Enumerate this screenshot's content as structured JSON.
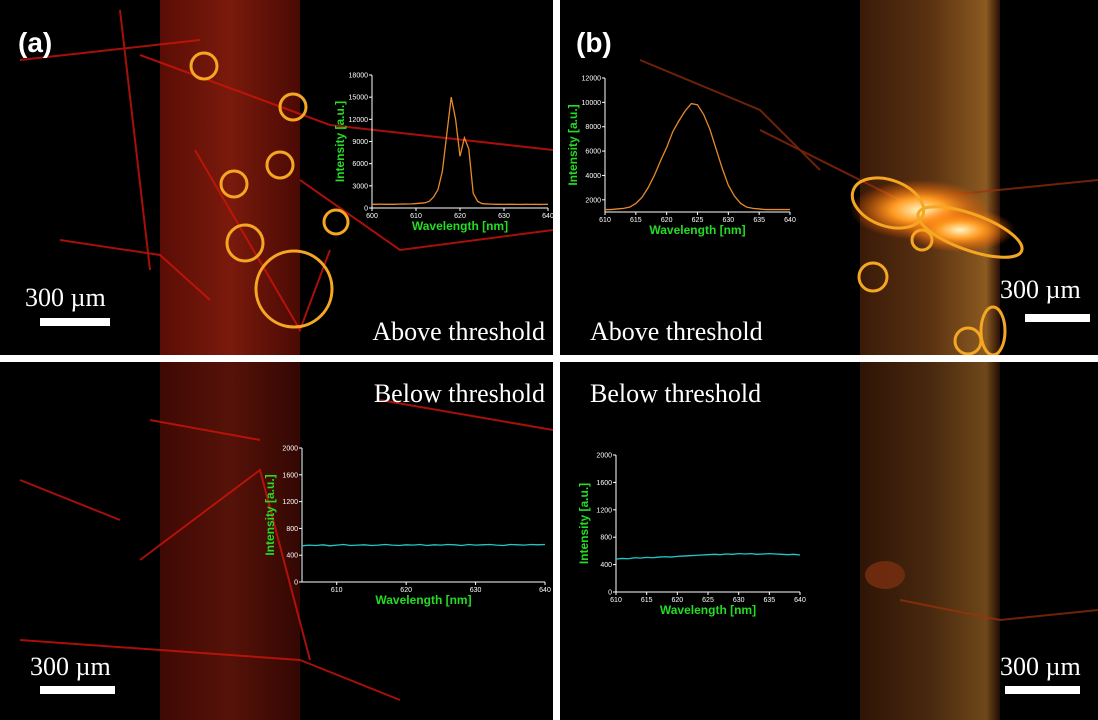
{
  "panels": [
    {
      "label": "(a)",
      "caption": "Above threshold",
      "scale": "300 µm"
    },
    {
      "label": "(b)",
      "caption": "Above threshold",
      "scale": "300 µm"
    },
    {
      "caption": "Below threshold",
      "scale": "300 µm"
    },
    {
      "caption": "Below threshold",
      "scale": "300 µm"
    }
  ],
  "chart_data": [
    {
      "type": "line",
      "x_label": "Wavelength [nm]",
      "y_label": "Intensity [a.u.]",
      "xlim": [
        600,
        640
      ],
      "xticks": [
        600,
        610,
        620,
        630,
        640
      ],
      "ylim": [
        0,
        18000
      ],
      "yticks": [
        0,
        3000,
        6000,
        9000,
        12000,
        15000,
        18000
      ],
      "x": [
        600,
        601,
        602,
        603,
        604,
        605,
        606,
        607,
        608,
        609,
        610,
        611,
        612,
        613,
        614,
        615,
        616,
        617,
        618,
        619,
        620,
        621,
        622,
        623,
        624,
        625,
        626,
        627,
        628,
        629,
        630,
        631,
        632,
        633,
        634,
        635,
        636,
        637,
        638,
        639,
        640
      ],
      "series": [
        {
          "color": "#e8892a",
          "values": [
            500,
            500,
            520,
            500,
            510,
            500,
            520,
            530,
            540,
            560,
            600,
            650,
            700,
            900,
            1500,
            2500,
            5000,
            10000,
            15000,
            12000,
            7000,
            9500,
            8000,
            2000,
            900,
            600,
            550,
            520,
            500,
            500,
            490,
            500,
            500,
            490,
            480,
            500,
            490,
            500,
            480,
            490,
            500
          ]
        }
      ]
    },
    {
      "type": "line",
      "x_label": "Wavelength [nm]",
      "y_label": "Intensity [a.u.]",
      "xlim": [
        610,
        640
      ],
      "xticks": [
        610,
        615,
        620,
        625,
        630,
        635,
        640
      ],
      "ylim": [
        1000,
        12000
      ],
      "yticks": [
        2000,
        4000,
        6000,
        8000,
        10000,
        12000
      ],
      "x": [
        610,
        611,
        612,
        613,
        614,
        615,
        616,
        617,
        618,
        619,
        620,
        621,
        622,
        623,
        624,
        625,
        626,
        627,
        628,
        629,
        630,
        631,
        632,
        633,
        634,
        635,
        636,
        637,
        638,
        639,
        640
      ],
      "series": [
        {
          "color": "#e8892a",
          "values": [
            1200,
            1200,
            1250,
            1300,
            1400,
            1700,
            2200,
            3000,
            4000,
            5200,
            6300,
            7600,
            8500,
            9300,
            9900,
            9800,
            9000,
            7800,
            6200,
            4600,
            3200,
            2300,
            1700,
            1400,
            1300,
            1250,
            1200,
            1200,
            1200,
            1200,
            1200
          ]
        }
      ]
    },
    {
      "type": "line",
      "x_label": "Wavelength [nm]",
      "y_label": "Intensity [a.u.]",
      "xlim": [
        605,
        640
      ],
      "xticks": [
        610,
        620,
        630,
        640
      ],
      "ylim": [
        0,
        2000
      ],
      "yticks": [
        0,
        400,
        800,
        1200,
        1600,
        2000
      ],
      "x": [
        605,
        606,
        607,
        608,
        609,
        610,
        611,
        612,
        613,
        614,
        615,
        616,
        617,
        618,
        619,
        620,
        621,
        622,
        623,
        624,
        625,
        626,
        627,
        628,
        629,
        630,
        631,
        632,
        633,
        634,
        635,
        636,
        637,
        638,
        639,
        640
      ],
      "series": [
        {
          "color": "#22c8c8",
          "values": [
            540,
            550,
            545,
            555,
            540,
            550,
            560,
            545,
            550,
            555,
            545,
            550,
            560,
            550,
            545,
            555,
            550,
            560,
            545,
            555,
            550,
            560,
            555,
            545,
            560,
            550,
            555,
            560,
            550,
            545,
            560,
            555,
            550,
            560,
            555,
            560
          ]
        }
      ]
    },
    {
      "type": "line",
      "x_label": "Wavelength [nm]",
      "y_label": "Intensity [a.u.]",
      "xlim": [
        610,
        640
      ],
      "xticks": [
        610,
        615,
        620,
        625,
        630,
        635,
        640
      ],
      "ylim": [
        0,
        2000
      ],
      "yticks": [
        0,
        400,
        800,
        1200,
        1600,
        2000
      ],
      "x": [
        610,
        611,
        612,
        613,
        614,
        615,
        616,
        617,
        618,
        619,
        620,
        621,
        622,
        623,
        624,
        625,
        626,
        627,
        628,
        629,
        630,
        631,
        632,
        633,
        634,
        635,
        636,
        637,
        638,
        639,
        640
      ],
      "series": [
        {
          "color": "#22c8c8",
          "values": [
            480,
            490,
            485,
            500,
            495,
            505,
            500,
            510,
            515,
            510,
            520,
            525,
            530,
            535,
            540,
            545,
            550,
            545,
            555,
            550,
            560,
            555,
            560,
            550,
            555,
            560,
            555,
            550,
            545,
            550,
            540
          ]
        }
      ]
    }
  ]
}
